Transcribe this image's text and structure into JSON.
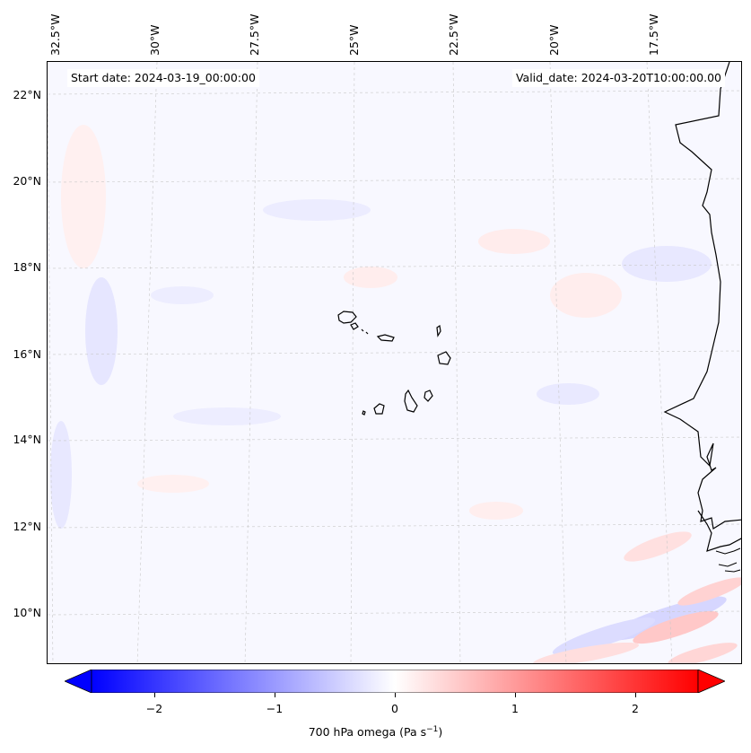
{
  "map": {
    "start_date_text": "Start date: 2024-03-19_00:00:00",
    "valid_date_text": "Valid_date: 2024-03-20T10:00:00.00",
    "longitude_labels": [
      "32.5°W",
      "30°W",
      "27.5°W",
      "25°W",
      "22.5°W",
      "20°W",
      "17.5°W"
    ],
    "latitude_labels": [
      "22°N",
      "20°N",
      "18°N",
      "16°N",
      "14°N",
      "12°N",
      "10°N"
    ],
    "field": "700 hPa omega",
    "colormap": "bwr",
    "colors": {
      "negative": "#0000ff",
      "zero": "#ffffff",
      "positive": "#ff0000",
      "coastline": "#000000",
      "gridline": "#bbbbbb"
    }
  },
  "colorbar": {
    "ticks": [
      "−2",
      "−1",
      "0",
      "1",
      "2"
    ],
    "range": [
      -2.6,
      2.6
    ],
    "extend": "both",
    "label_main": "700 hPa omega (Pa s",
    "label_sup": "−1",
    "label_end": ")"
  }
}
